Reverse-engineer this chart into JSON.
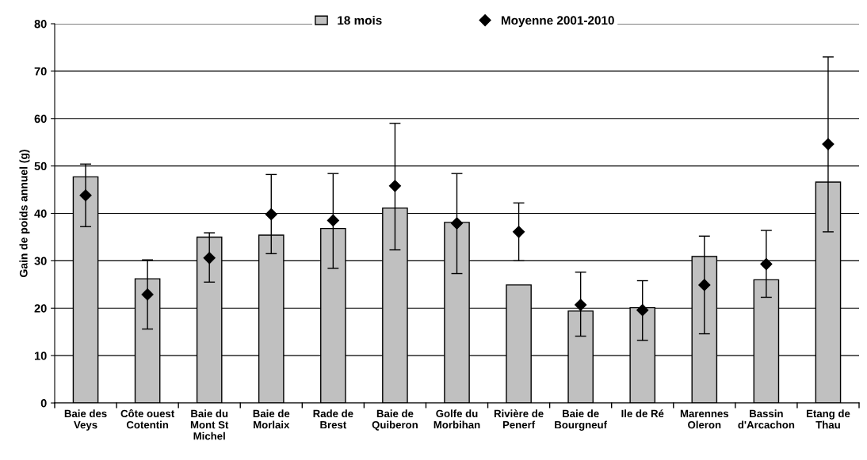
{
  "chart_data": {
    "type": "bar",
    "ylabel": "Gain de poids annuel (g)",
    "categories": [
      "Baie des\nVeys",
      "Côte ouest\nCotentin",
      "Baie du\nMont St\nMichel",
      "Baie de\nMorlaix",
      "Rade de\nBrest",
      "Baie de\nQuiberon",
      "Golfe du\nMorbihan",
      "Rivière de\nPenerf",
      "Baie de\nBourgneuf",
      "Ile de Ré",
      "Marennes\nOleron",
      "Bassin\nd'Arcachon",
      "Etang de\nThau"
    ],
    "series": [
      {
        "name": "18 mois",
        "color": "#c0c0c0",
        "values": [
          47.7,
          26.2,
          35.0,
          35.4,
          36.8,
          41.1,
          38.1,
          24.9,
          19.4,
          20.1,
          30.9,
          26.0,
          46.6
        ]
      },
      {
        "name": "Moyenne 2001-2010",
        "type": "scatter",
        "color": "#000000",
        "marker": "diamond",
        "values": [
          43.8,
          22.9,
          30.6,
          39.8,
          38.5,
          45.8,
          37.9,
          36.1,
          20.7,
          19.6,
          24.9,
          29.3,
          54.6
        ],
        "errors": [
          [
            37.2,
            50.4
          ],
          [
            15.6,
            30.2
          ],
          [
            25.5,
            35.9
          ],
          [
            31.5,
            48.2
          ],
          [
            28.4,
            48.4
          ],
          [
            32.3,
            59.0
          ],
          [
            27.3,
            48.4
          ],
          [
            30.0,
            42.2
          ],
          [
            14.1,
            27.6
          ],
          [
            13.2,
            25.8
          ],
          [
            14.6,
            35.2
          ],
          [
            22.3,
            36.4
          ],
          [
            36.1,
            73.0
          ]
        ]
      }
    ],
    "ylim": [
      0,
      80
    ],
    "yticks": [
      0,
      10,
      20,
      30,
      40,
      50,
      60,
      70,
      80
    ],
    "grid": "y",
    "legend": "top"
  }
}
